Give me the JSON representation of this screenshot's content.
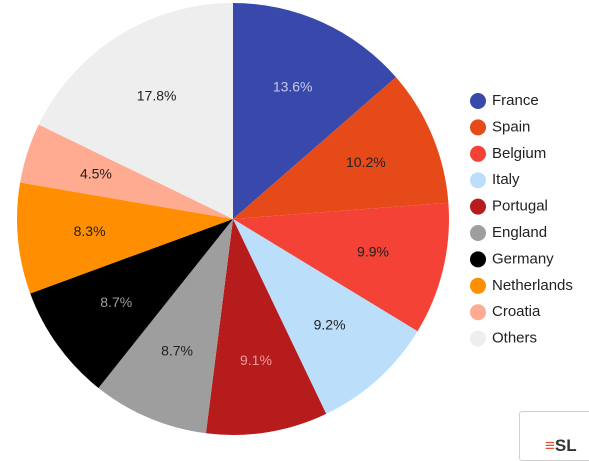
{
  "chart_data": {
    "type": "pie",
    "title": "",
    "legend_position": "right",
    "slices": [
      {
        "name": "France",
        "value": 13.6,
        "label": "13.6%",
        "color": "#3949ab",
        "label_color": "#c5cae9"
      },
      {
        "name": "Spain",
        "value": 10.2,
        "label": "10.2%",
        "color": "#e64a19",
        "label_color": "#212121"
      },
      {
        "name": "Belgium",
        "value": 9.9,
        "label": "9.9%",
        "color": "#f44336",
        "label_color": "#212121"
      },
      {
        "name": "Italy",
        "value": 9.2,
        "label": "9.2%",
        "color": "#bbdefb",
        "label_color": "#212121"
      },
      {
        "name": "Portugal",
        "value": 9.1,
        "label": "9.1%",
        "color": "#b71c1c",
        "label_color": "#ef9a9a"
      },
      {
        "name": "England",
        "value": 8.7,
        "label": "8.7%",
        "color": "#9e9e9e",
        "label_color": "#212121"
      },
      {
        "name": "Germany",
        "value": 8.7,
        "label": "8.7%",
        "color": "#000000",
        "label_color": "#9e9e9e"
      },
      {
        "name": "Netherlands",
        "value": 8.3,
        "label": "8.3%",
        "color": "#ff8f00",
        "label_color": "#212121"
      },
      {
        "name": "Croatia",
        "value": 4.5,
        "label": "4.5%",
        "color": "#ffab91",
        "label_color": "#212121"
      },
      {
        "name": "Others",
        "value": 17.8,
        "label": "17.8%",
        "color": "#eeeeee",
        "label_color": "#212121"
      }
    ]
  },
  "logo": {
    "text": "SL",
    "bars_glyph": "≡"
  }
}
